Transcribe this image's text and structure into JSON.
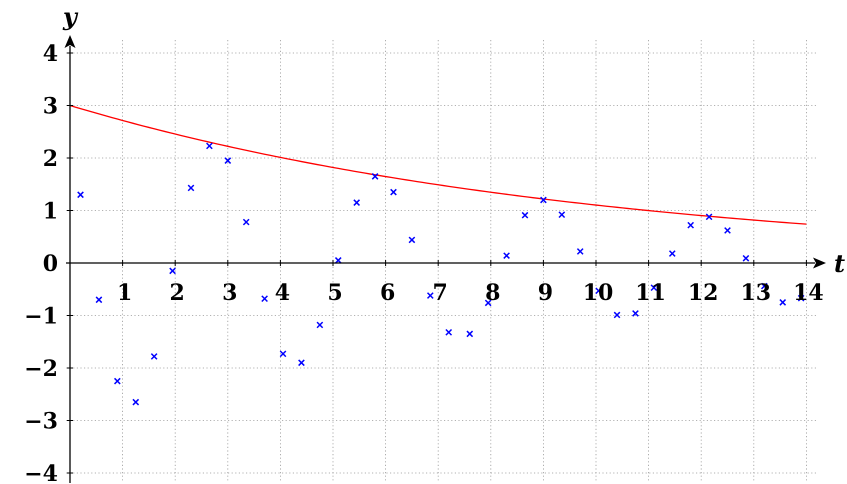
{
  "chart_data": {
    "type": "scatter",
    "title": "",
    "xlabel": "t",
    "ylabel": "y",
    "xlim": [
      0,
      14
    ],
    "ylim": [
      -4,
      4
    ],
    "x_ticks": [
      1,
      2,
      3,
      4,
      5,
      6,
      7,
      8,
      9,
      10,
      11,
      12,
      13,
      14
    ],
    "y_ticks": [
      -4,
      -3,
      -2,
      -1,
      0,
      1,
      2,
      3,
      4
    ],
    "grid": true,
    "colors": {
      "points": "#0000ff",
      "curve": "#ff0000"
    },
    "series": [
      {
        "kind": "points",
        "marker": "x",
        "points": [
          [
            0.2,
            1.3
          ],
          [
            0.55,
            -0.7
          ],
          [
            0.9,
            -2.25
          ],
          [
            1.25,
            -2.65
          ],
          [
            1.6,
            -1.78
          ],
          [
            1.95,
            -0.15
          ],
          [
            2.3,
            1.43
          ],
          [
            2.65,
            2.23
          ],
          [
            3.0,
            1.95
          ],
          [
            3.35,
            0.78
          ],
          [
            3.7,
            -0.68
          ],
          [
            4.05,
            -1.73
          ],
          [
            4.4,
            -1.9
          ],
          [
            4.75,
            -1.18
          ],
          [
            5.1,
            0.05
          ],
          [
            5.45,
            1.15
          ],
          [
            5.8,
            1.65
          ],
          [
            6.15,
            1.35
          ],
          [
            6.5,
            0.44
          ],
          [
            6.85,
            -0.62
          ],
          [
            7.2,
            -1.32
          ],
          [
            7.6,
            -1.35
          ],
          [
            7.95,
            -0.76
          ],
          [
            8.3,
            0.14
          ],
          [
            8.65,
            0.91
          ],
          [
            9.0,
            1.2
          ],
          [
            9.35,
            0.92
          ],
          [
            9.7,
            0.22
          ],
          [
            10.05,
            -0.53
          ],
          [
            10.4,
            -0.99
          ],
          [
            10.75,
            -0.96
          ],
          [
            11.1,
            -0.47
          ],
          [
            11.45,
            0.18
          ],
          [
            11.8,
            0.72
          ],
          [
            12.15,
            0.88
          ],
          [
            12.5,
            0.62
          ],
          [
            12.85,
            0.09
          ],
          [
            13.2,
            -0.44
          ],
          [
            13.55,
            -0.75
          ],
          [
            13.9,
            -0.67
          ]
        ]
      },
      {
        "kind": "curve",
        "x_start": 0,
        "x_end": 14,
        "initial_value": 3,
        "decay_rate": 0.1
      }
    ]
  }
}
